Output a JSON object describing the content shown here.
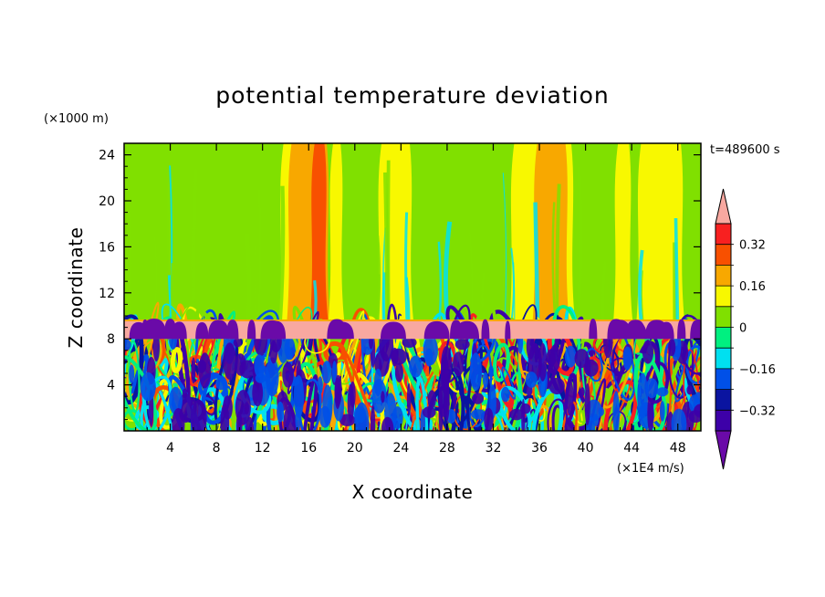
{
  "chart_data": {
    "type": "heatmap",
    "title": "potential temperature deviation",
    "xlabel": "X coordinate",
    "ylabel": "Z coordinate",
    "x_unit": "(×1E4 m/s)",
    "y_unit": "(×1000 m)",
    "time_label": "t=489600 s",
    "xlim": [
      0,
      50
    ],
    "ylim": [
      0,
      25
    ],
    "x_ticks": [
      4,
      8,
      12,
      16,
      20,
      24,
      28,
      32,
      36,
      40,
      44,
      48
    ],
    "y_ticks": [
      4,
      8,
      12,
      16,
      20,
      24
    ],
    "colorbar": {
      "levels": [
        -0.4,
        -0.32,
        -0.24,
        -0.16,
        -0.08,
        0,
        0.08,
        0.16,
        0.24,
        0.32,
        0.4
      ],
      "tick_labels": [
        {
          "value": 0.32,
          "label": "0.32"
        },
        {
          "value": 0.16,
          "label": "0.16"
        },
        {
          "value": 0,
          "label": "0"
        },
        {
          "value": -0.16,
          "label": "−0.16"
        },
        {
          "value": -0.32,
          "label": "−0.32"
        }
      ],
      "colors": [
        "#6a0aa8",
        "#3d00a8",
        "#0a14a0",
        "#0050e8",
        "#00e0f0",
        "#00f080",
        "#80e000",
        "#f8f800",
        "#f8a800",
        "#f85000",
        "#f82020",
        "#f8a8a0"
      ],
      "extend": "both"
    },
    "regions": {
      "upper_background": 0.0,
      "inversion_band": {
        "z_range": [
          8.0,
          9.6
        ],
        "value": 0.45
      },
      "turbulent_layer_top": 8.0
    },
    "upper_bands": [
      {
        "x_range": [
          13.5,
          15.0
        ],
        "value": 0.1
      },
      {
        "x_range": [
          14.2,
          17.8
        ],
        "value": 0.2
      },
      {
        "x_range": [
          16.2,
          17.6
        ],
        "value": 0.3
      },
      {
        "x_range": [
          17.8,
          19.0
        ],
        "value": 0.1
      },
      {
        "x_range": [
          22.0,
          25.0
        ],
        "value": 0.1
      },
      {
        "x_range": [
          33.5,
          39.0
        ],
        "value": 0.1
      },
      {
        "x_range": [
          35.5,
          38.5
        ],
        "value": 0.2
      },
      {
        "x_range": [
          42.5,
          44.0
        ],
        "value": 0.1
      },
      {
        "x_range": [
          44.5,
          48.5
        ],
        "value": 0.1
      }
    ]
  }
}
